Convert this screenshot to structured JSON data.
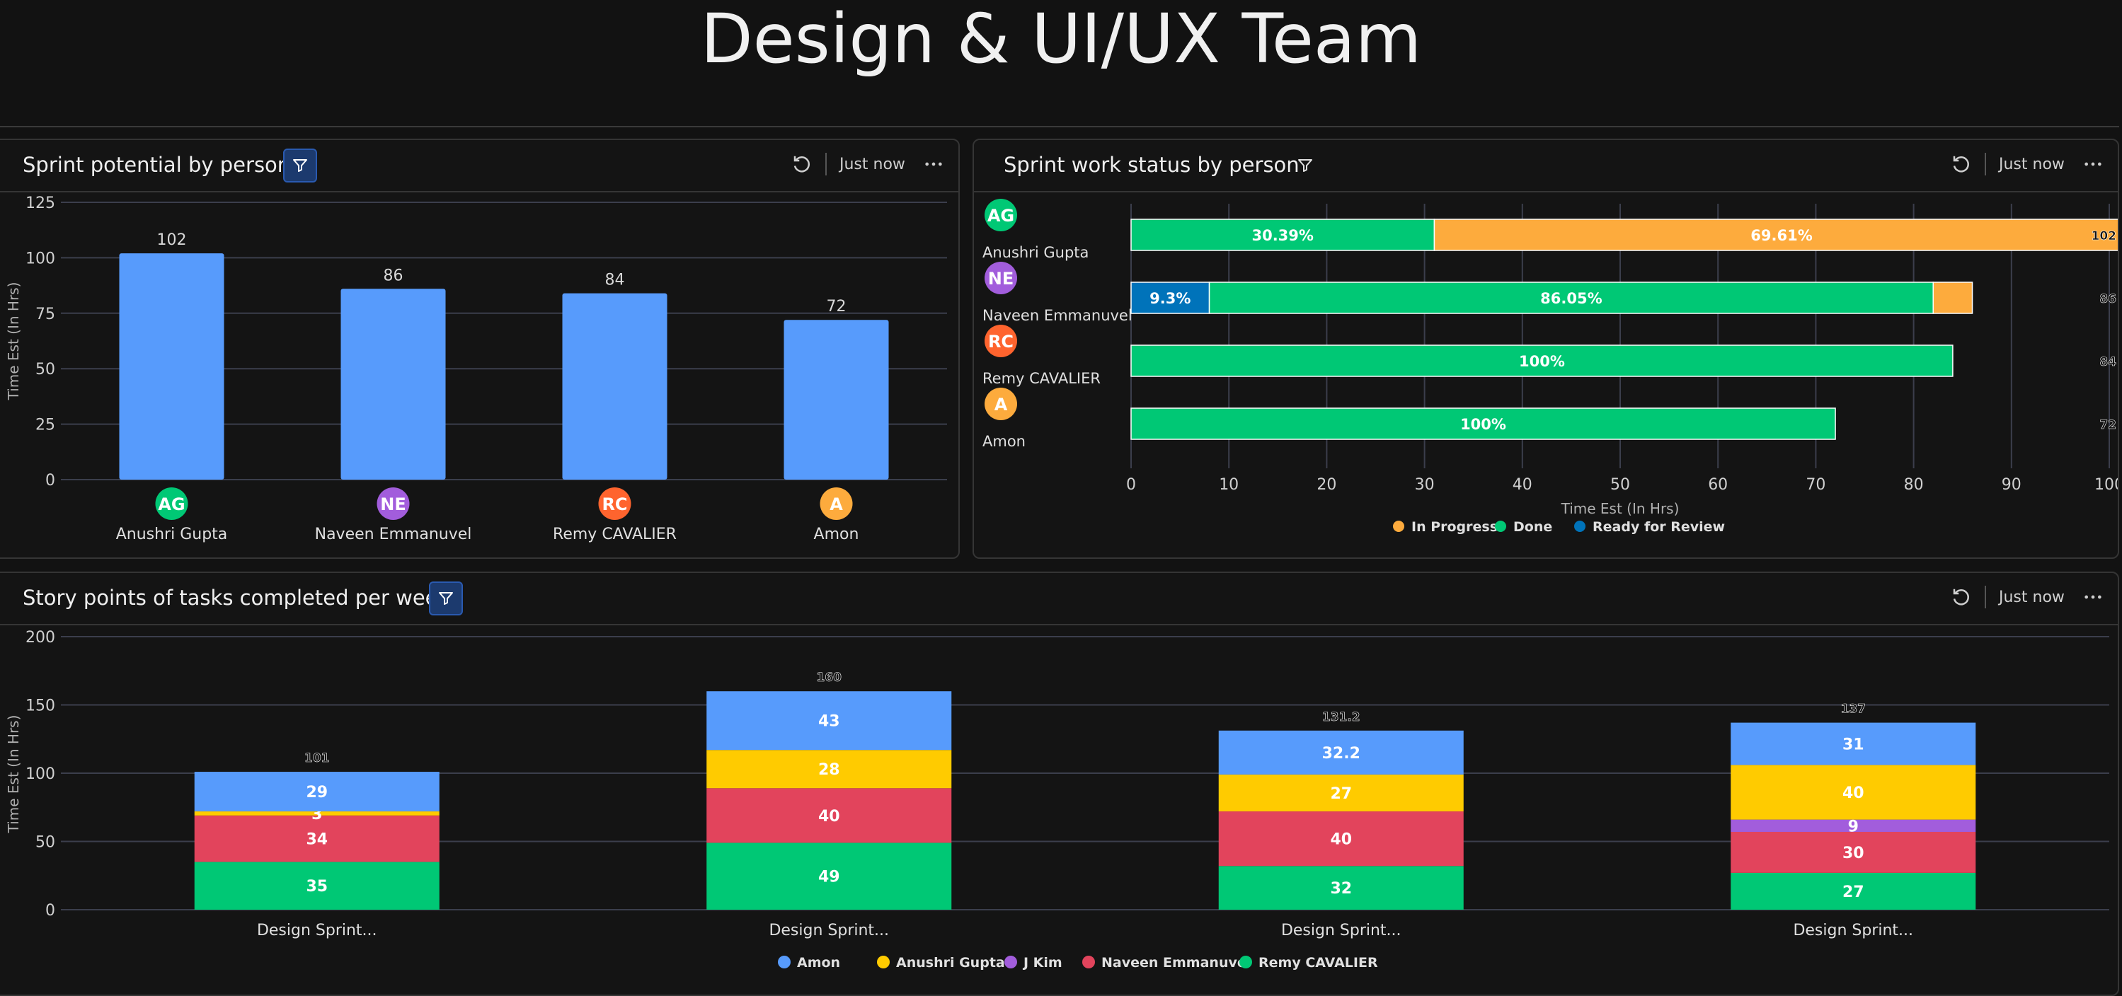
{
  "page": {
    "title": "Design & UI/UX Team"
  },
  "widgets": {
    "potential": {
      "title": "Sprint potential by person",
      "updated": "Just now",
      "refresh_icon": "refresh-icon",
      "more_icon": "more-dots-icon",
      "filter_icon": "filter-icon"
    },
    "status": {
      "title": "Sprint work status by person",
      "updated": "Just now",
      "refresh_icon": "refresh-icon",
      "more_icon": "more-dots-icon",
      "filter_icon": "filter-icon"
    },
    "story": {
      "title": "Story points of tasks completed per week",
      "updated": "Just now",
      "refresh_icon": "refresh-icon",
      "more_icon": "more-dots-icon",
      "filter_icon": "filter-icon"
    }
  },
  "colors": {
    "bar_blue": "#579bfc",
    "green": "#00c875",
    "orange": "#fdab3d",
    "dark_blue": "#0073ba",
    "yellow": "#ffcb00",
    "purple": "#a25ddc",
    "red": "#e2445c",
    "avatar_ne": "#a25ddc",
    "avatar_rc": "#ff642e",
    "avatar_a": "#fdab3d",
    "avatar_ag": "#00c875"
  },
  "chart_data": [
    {
      "id": "potential",
      "type": "bar",
      "title": "Sprint potential by person",
      "ylabel": "Time Est (In Hrs)",
      "xlabel": "",
      "ylim": [
        0,
        125
      ],
      "yticks": [
        0,
        25,
        50,
        75,
        100,
        125
      ],
      "grid": true,
      "categories": [
        {
          "name": "Anushri Gupta",
          "initials": "AG",
          "avatar_color": "#00c875"
        },
        {
          "name": "Naveen Emmanuvel",
          "initials": "NE",
          "avatar_color": "#a25ddc"
        },
        {
          "name": "Remy CAVALIER",
          "initials": "RC",
          "avatar_color": "#ff642e"
        },
        {
          "name": "Amon",
          "initials": "A",
          "avatar_color": "#fdab3d"
        }
      ],
      "values": [
        102,
        86,
        84,
        72
      ]
    },
    {
      "id": "status",
      "type": "bar",
      "orientation": "horizontal-stacked",
      "title": "Sprint work status by person",
      "xlabel": "Time Est (In Hrs)",
      "xlim": [
        0,
        100
      ],
      "xticks": [
        0,
        10,
        20,
        30,
        40,
        50,
        60,
        70,
        80,
        90,
        100
      ],
      "grid": true,
      "legend": [
        {
          "name": "In Progress",
          "color": "#fdab3d"
        },
        {
          "name": "Done",
          "color": "#00c875"
        },
        {
          "name": "Ready for Review",
          "color": "#0073ba"
        }
      ],
      "legend_position": "bottom-center",
      "rows": [
        {
          "name": "Anushri Gupta",
          "initials": "AG",
          "avatar_color": "#00c875",
          "total": "102",
          "segments": [
            {
              "status": "Done",
              "value": 31,
              "label": "30.39%"
            },
            {
              "status": "In Progress",
              "value": 71,
              "label": "69.61%"
            }
          ]
        },
        {
          "name": "Naveen Emmanuvel",
          "initials": "NE",
          "avatar_color": "#a25ddc",
          "total": "86",
          "segments": [
            {
              "status": "Ready for Review",
              "value": 8,
              "label": "9.3%"
            },
            {
              "status": "Done",
              "value": 74,
              "label": "86.05%"
            },
            {
              "status": "In Progress",
              "value": 4,
              "label": ""
            }
          ]
        },
        {
          "name": "Remy CAVALIER",
          "initials": "RC",
          "avatar_color": "#ff642e",
          "total": "84",
          "segments": [
            {
              "status": "Done",
              "value": 84,
              "label": "100%"
            }
          ]
        },
        {
          "name": "Amon",
          "initials": "A",
          "avatar_color": "#fdab3d",
          "total": "72",
          "segments": [
            {
              "status": "Done",
              "value": 72,
              "label": "100%"
            }
          ]
        }
      ]
    },
    {
      "id": "story",
      "type": "bar",
      "orientation": "vertical-stacked",
      "title": "Story points of tasks completed per week",
      "ylabel": "Time Est (In Hrs)",
      "ylim": [
        0,
        200
      ],
      "yticks": [
        0,
        50,
        100,
        150,
        200
      ],
      "grid": true,
      "legend_position": "bottom-center",
      "categories": [
        "Design Sprint...",
        "Design Sprint...",
        "Design Sprint...",
        "Design Sprint..."
      ],
      "totals": [
        "101",
        "160",
        "131.2",
        "137"
      ],
      "series": [
        {
          "name": "Remy CAVALIER",
          "color": "#00c875",
          "values": [
            35,
            49,
            32,
            27
          ]
        },
        {
          "name": "Naveen Emmanuvel",
          "color": "#e2445c",
          "values": [
            34,
            40,
            40,
            30
          ]
        },
        {
          "name": "J Kim",
          "color": "#a25ddc",
          "values": [
            0,
            0,
            0,
            9
          ]
        },
        {
          "name": "Anushri Gupta",
          "color": "#ffcb00",
          "values": [
            3,
            28,
            27,
            40
          ]
        },
        {
          "name": "Amon",
          "color": "#579bfc",
          "values": [
            29,
            43,
            32.2,
            31
          ]
        }
      ],
      "legend_order": [
        "Amon",
        "Anushri Gupta",
        "J Kim",
        "Naveen Emmanuvel",
        "Remy CAVALIER"
      ]
    }
  ]
}
